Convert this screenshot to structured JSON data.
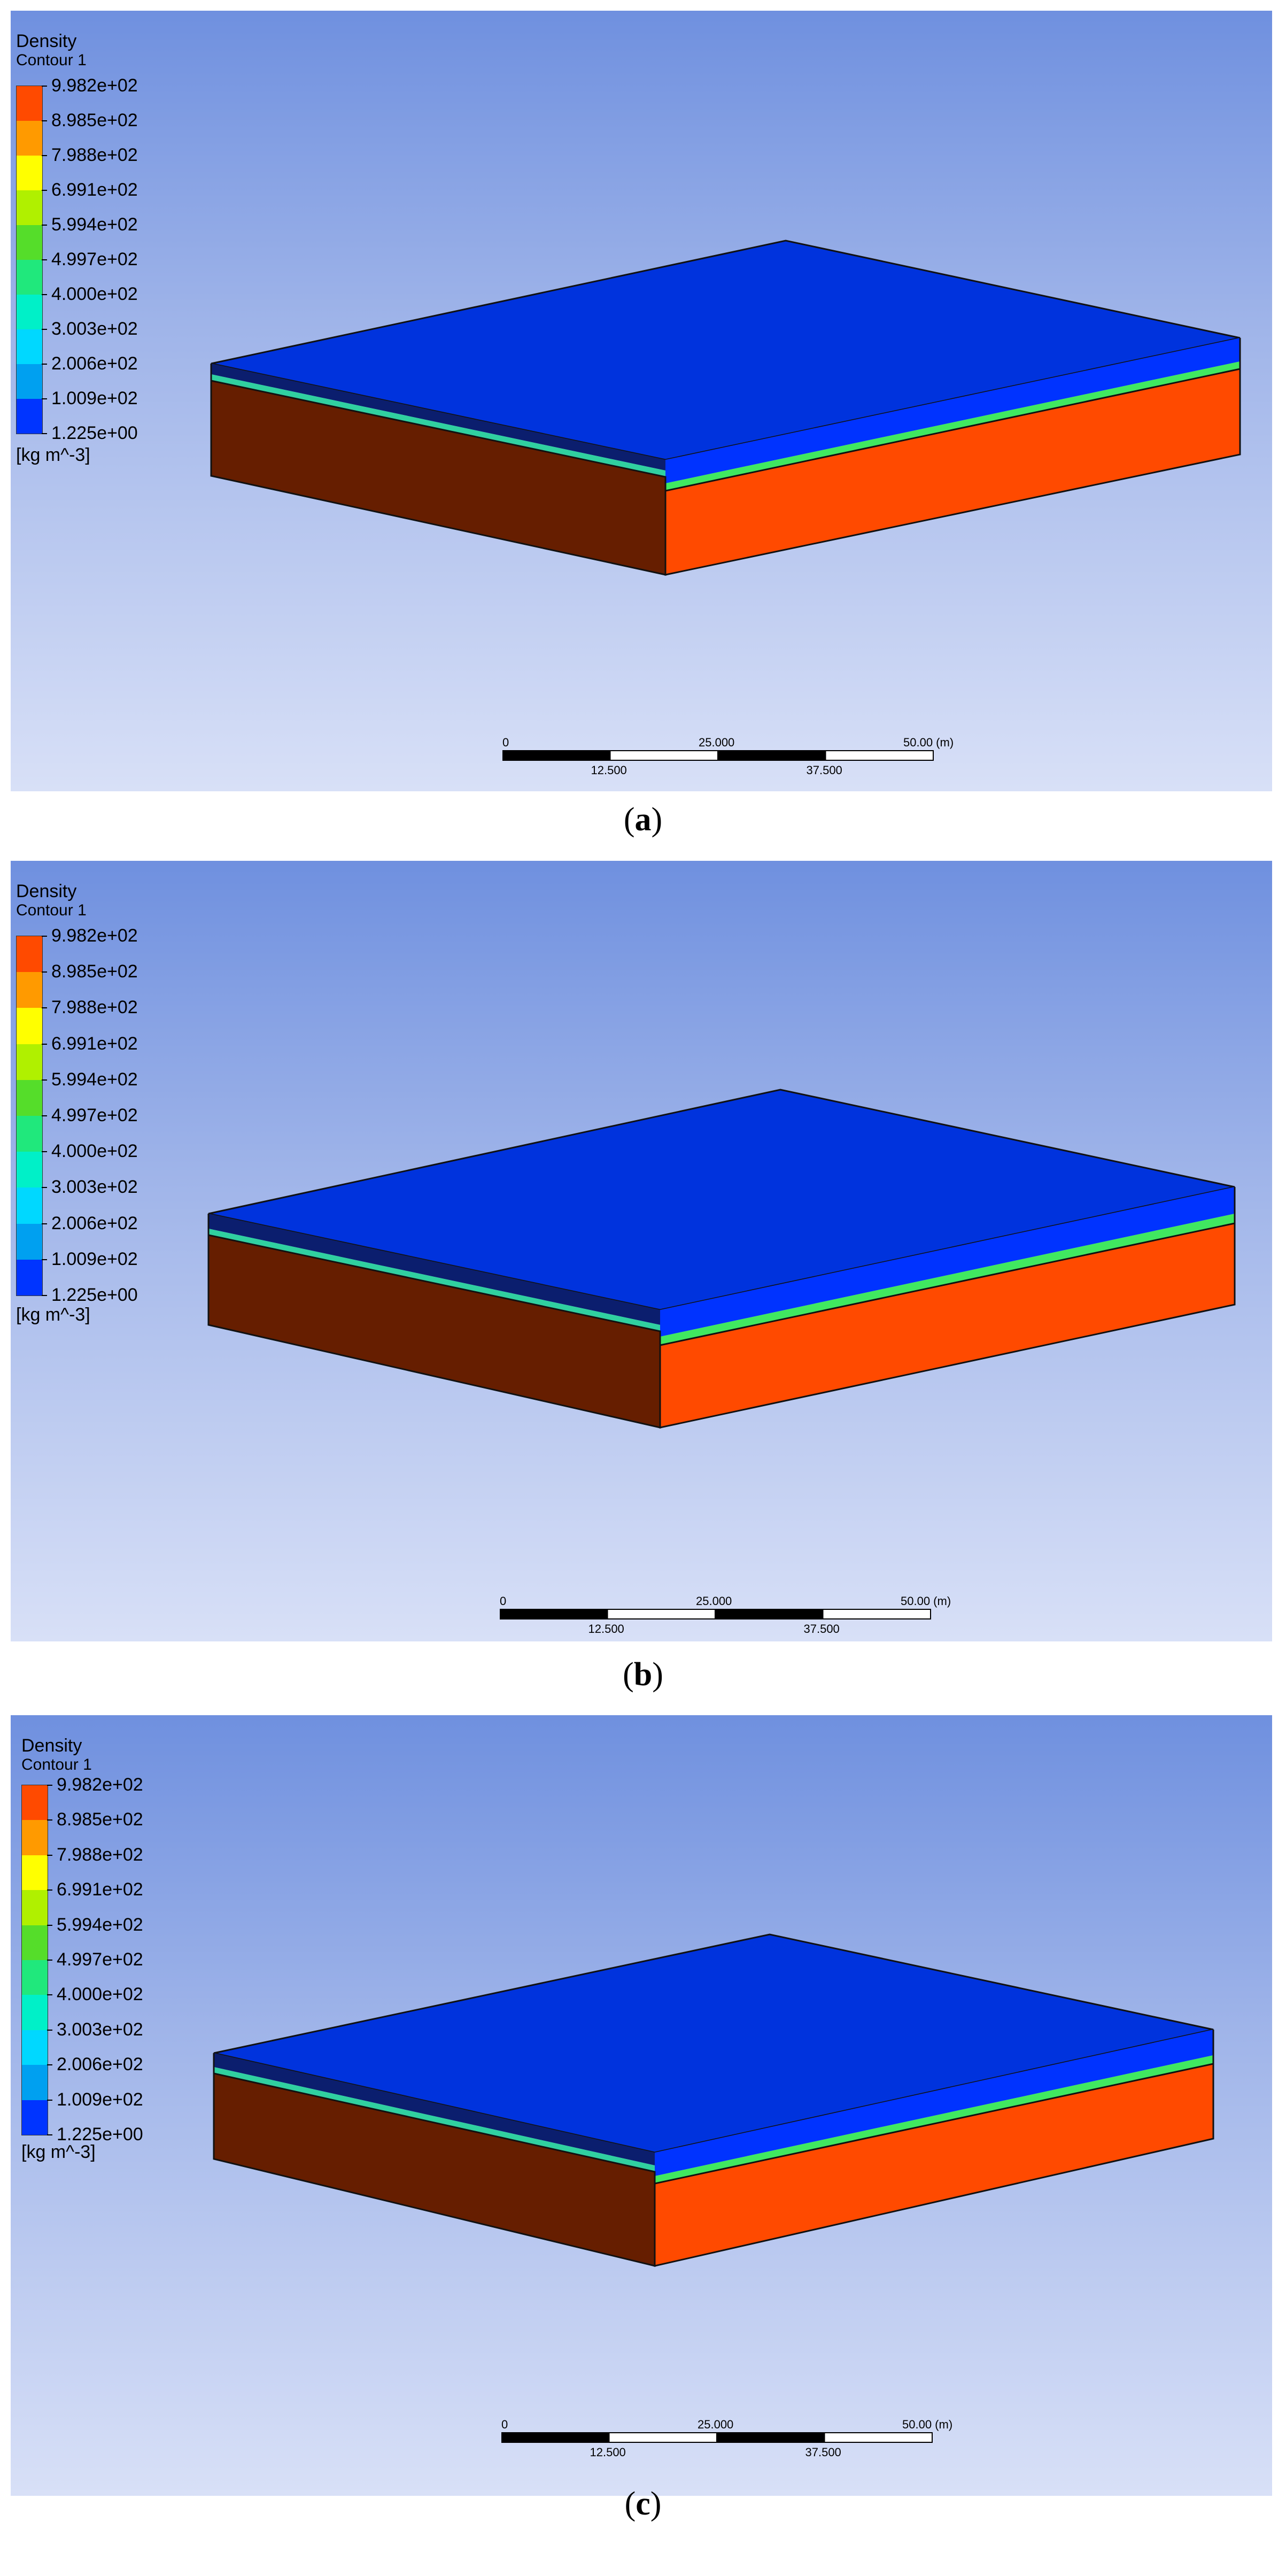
{
  "legend": {
    "title": "Density",
    "subtitle": "Contour 1",
    "unit": "[kg m^-3]",
    "values": [
      "9.982e+02",
      "8.985e+02",
      "7.988e+02",
      "6.991e+02",
      "5.994e+02",
      "4.997e+02",
      "4.000e+02",
      "3.003e+02",
      "2.006e+02",
      "1.009e+02",
      "1.225e+00"
    ],
    "colors": [
      "#ff4a00",
      "#ff9a00",
      "#ffff00",
      "#b0f000",
      "#55dd2a",
      "#20e87c",
      "#00f0c8",
      "#00d8ff",
      "#00a0f0",
      "#0034ff"
    ]
  },
  "scale": {
    "labels_top": [
      "0",
      "25.000",
      "50.00  (m)"
    ],
    "labels_bottom": [
      "12.500",
      "37.500"
    ]
  },
  "panels": [
    {
      "caption_open": "(",
      "caption_letter": "a",
      "caption_close": ")"
    },
    {
      "caption_open": "(",
      "caption_letter": "b",
      "caption_close": ")"
    },
    {
      "caption_open": "(",
      "caption_letter": "c",
      "caption_close": ")"
    }
  ]
}
